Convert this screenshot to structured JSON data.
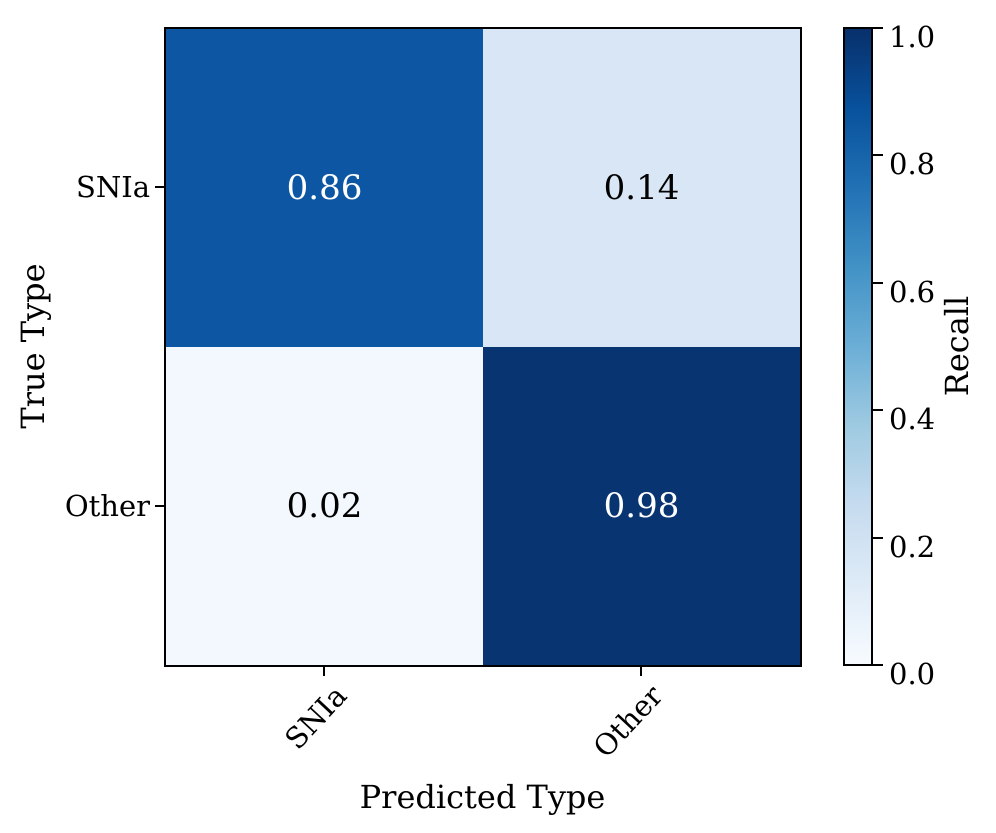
{
  "figure": {
    "xlabel": "Predicted Type",
    "ylabel": "True Type",
    "x_tick_labels": [
      "SNIa",
      "Other"
    ],
    "y_tick_labels": [
      "SNIa",
      "Other"
    ],
    "cells": [
      {
        "true_type": "SNIa",
        "predicted_type": "SNIa",
        "value": "0.86",
        "bg": "#0c56a3",
        "fg": "#ffffff"
      },
      {
        "true_type": "SNIa",
        "predicted_type": "Other",
        "value": "0.14",
        "bg": "#d8e6f5",
        "fg": "#000000"
      },
      {
        "true_type": "Other",
        "predicted_type": "SNIa",
        "value": "0.02",
        "bg": "#f3f8fe",
        "fg": "#000000"
      },
      {
        "true_type": "Other",
        "predicted_type": "Other",
        "value": "0.98",
        "bg": "#083572",
        "fg": "#ffffff"
      }
    ],
    "colorbar": {
      "label": "Recall",
      "tick_labels": [
        "1.0",
        "0.8",
        "0.6",
        "0.4",
        "0.2",
        "0.0"
      ],
      "gradient_bottom_to_top": [
        "#f7fbff",
        "#deebf7",
        "#c6dbef",
        "#9ecae1",
        "#6baed6",
        "#4292c6",
        "#2171b5",
        "#08519c",
        "#08306b"
      ]
    }
  },
  "chart_data": {
    "type": "heatmap",
    "title": "",
    "xlabel": "Predicted Type",
    "ylabel": "True Type",
    "x_categories": [
      "SNIa",
      "Other"
    ],
    "y_categories": [
      "SNIa",
      "Other"
    ],
    "values": [
      [
        0.86,
        0.14
      ],
      [
        0.02,
        0.98
      ]
    ],
    "colormap": "Blues",
    "colorbar_label": "Recall",
    "colorbar_range": [
      0.0,
      1.0
    ],
    "colorbar_tick_values": [
      1.0,
      0.8,
      0.6,
      0.4,
      0.2,
      0.0
    ],
    "annotations": true,
    "x_tick_rotation_deg": 45,
    "legend": "none",
    "grid": false
  }
}
